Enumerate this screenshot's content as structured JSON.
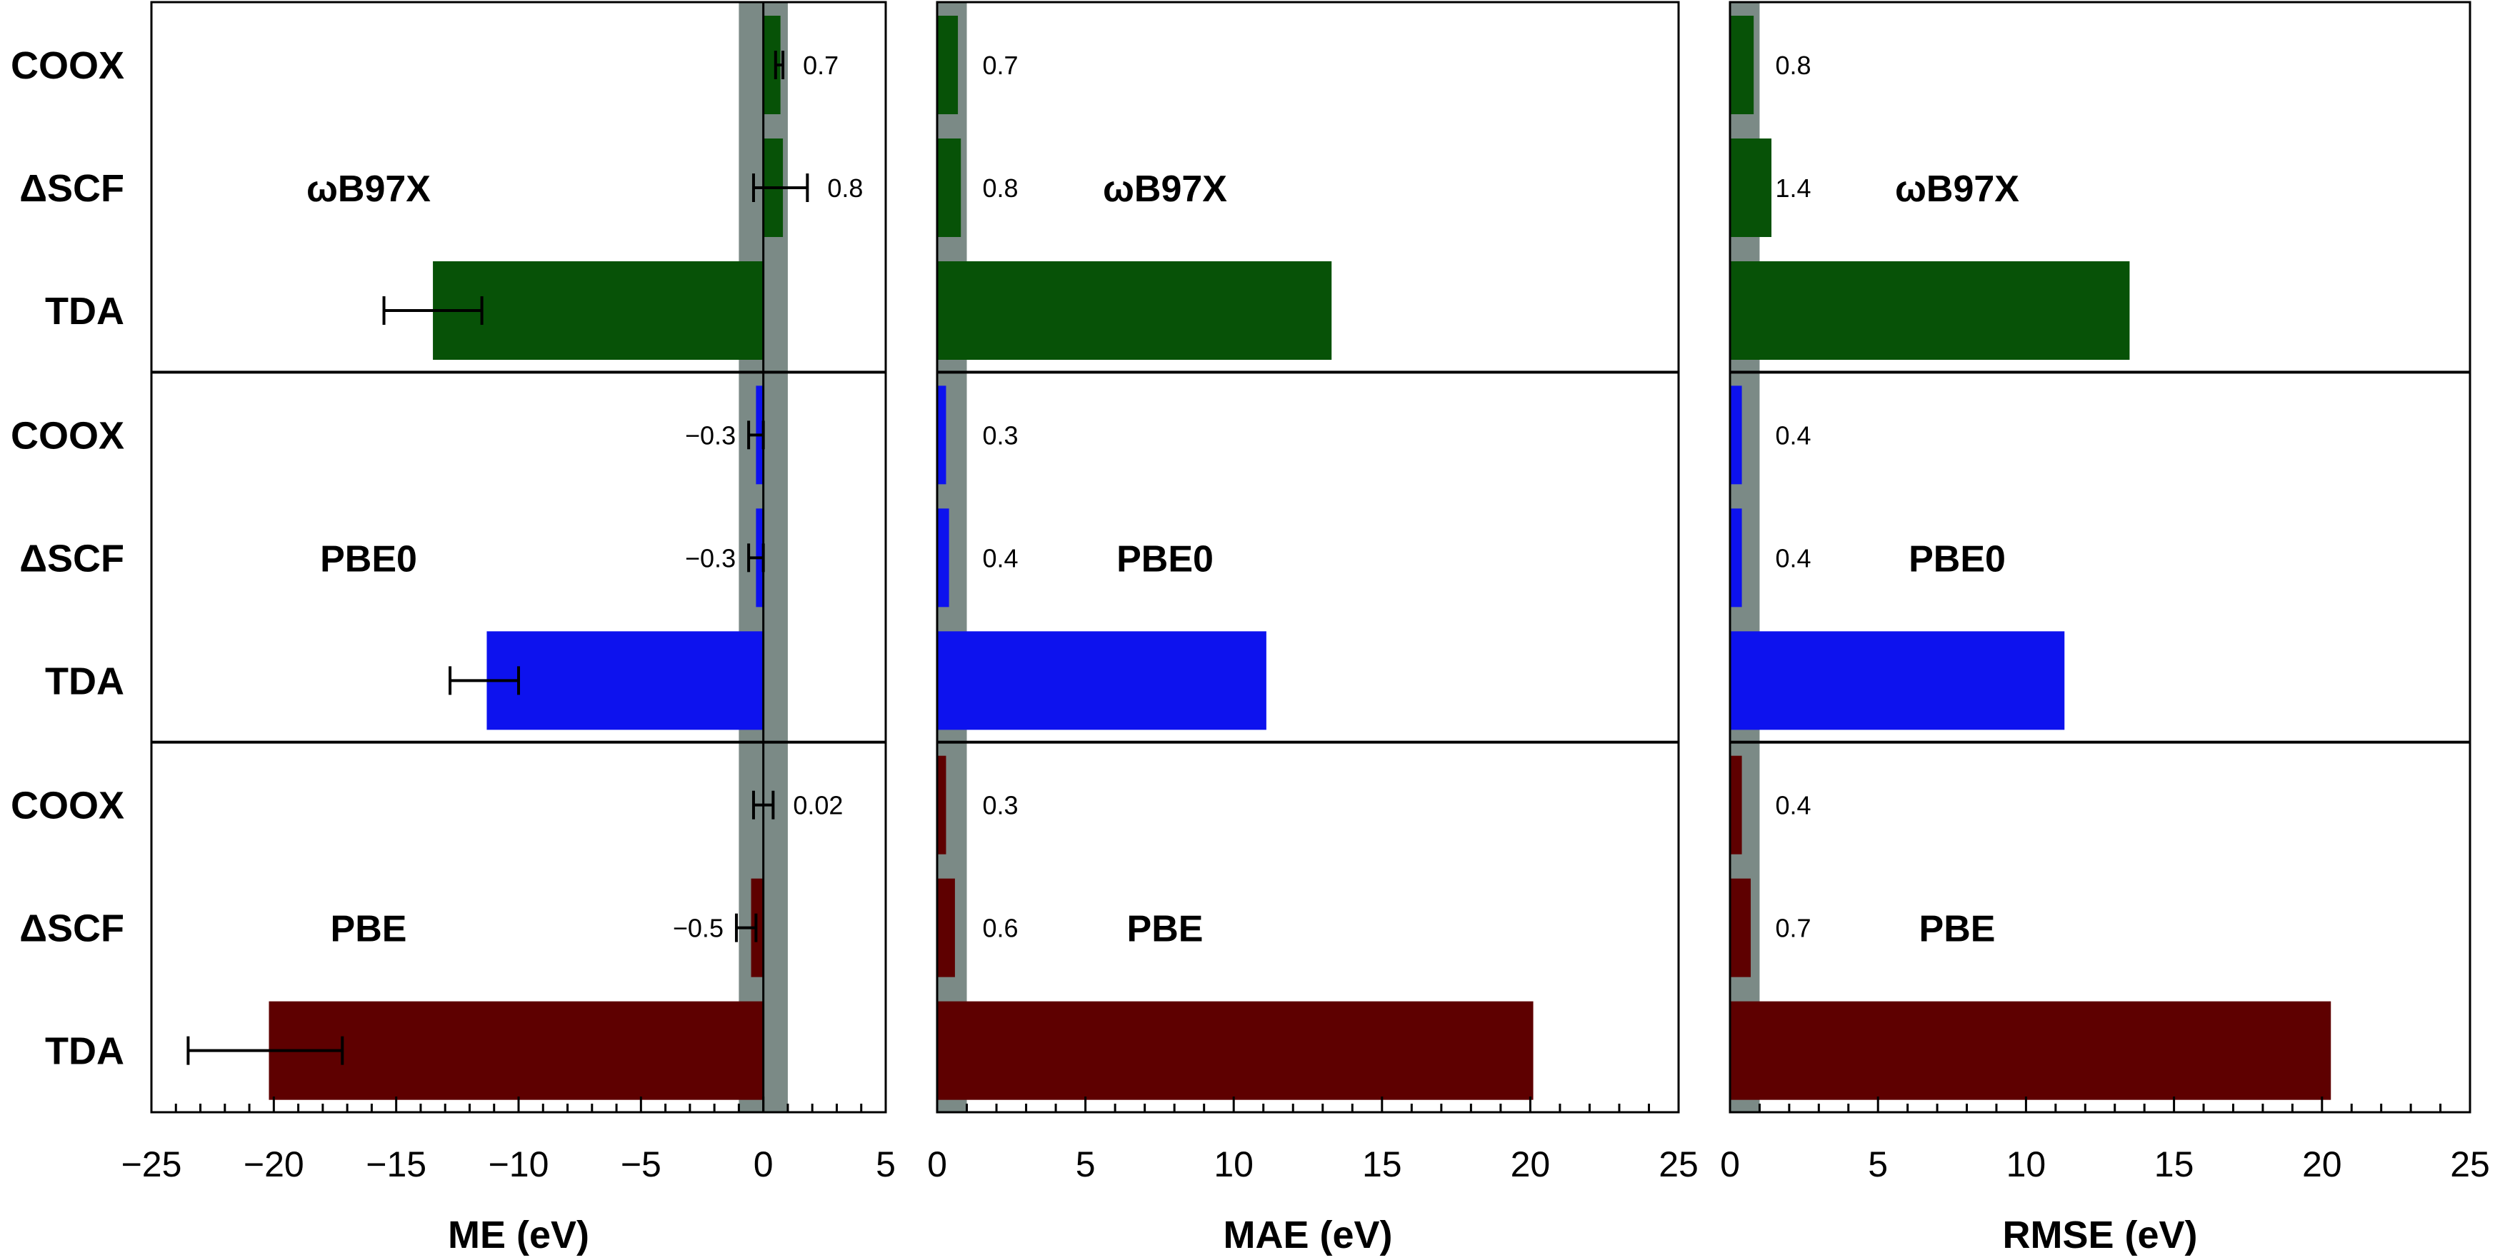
{
  "chart_data": [
    {
      "type": "bar",
      "orientation": "horizontal",
      "xlabel": "ME (eV)",
      "xlim": [
        -25,
        5
      ],
      "xticks": [
        -25,
        -20,
        -15,
        -10,
        -5,
        0,
        5
      ],
      "xtick_labels": [
        "−25",
        "−20",
        "−15",
        "−10",
        "−5",
        "0",
        "5"
      ],
      "reference_band": [
        -1,
        1
      ],
      "groups": [
        {
          "method": "ωB97X",
          "color": "#075207",
          "categories": [
            "COOX",
            "ΔSCF",
            "TDA"
          ],
          "values": [
            0.7,
            0.8,
            -13.5
          ],
          "error_low": [
            0.5,
            -0.4,
            -15.5
          ],
          "error_high": [
            0.8,
            1.8,
            -11.5
          ],
          "value_labels": [
            "0.7",
            "0.8",
            ""
          ]
        },
        {
          "method": "PBE0",
          "color": "#0d12ee",
          "categories": [
            "COOX",
            "ΔSCF",
            "TDA"
          ],
          "values": [
            -0.3,
            -0.3,
            -11.3
          ],
          "error_low": [
            -0.6,
            -0.6,
            -12.8
          ],
          "error_high": [
            0.0,
            0.0,
            -10.0
          ],
          "value_labels": [
            "−0.3",
            "−0.3",
            ""
          ]
        },
        {
          "method": "PBE",
          "color": "#5e0000",
          "categories": [
            "COOX",
            "ΔSCF",
            "TDA"
          ],
          "values": [
            0.02,
            -0.5,
            -20.2
          ],
          "error_low": [
            -0.4,
            -1.1,
            -23.5
          ],
          "error_high": [
            0.4,
            -0.3,
            -17.2
          ],
          "value_labels": [
            "0.02",
            "−0.5",
            ""
          ]
        }
      ]
    },
    {
      "type": "bar",
      "orientation": "horizontal",
      "xlabel": "MAE (eV)",
      "xlim": [
        0,
        25
      ],
      "xticks": [
        0,
        5,
        10,
        15,
        20,
        25
      ],
      "xtick_labels": [
        "0",
        "5",
        "10",
        "15",
        "20",
        "25"
      ],
      "reference_band": [
        0,
        1
      ],
      "groups": [
        {
          "method": "ωB97X",
          "color": "#075207",
          "categories": [
            "COOX",
            "ΔSCF",
            "TDA"
          ],
          "values": [
            0.7,
            0.8,
            13.3
          ],
          "value_labels": [
            "0.7",
            "0.8",
            ""
          ]
        },
        {
          "method": "PBE0",
          "color": "#0d12ee",
          "categories": [
            "COOX",
            "ΔSCF",
            "TDA"
          ],
          "values": [
            0.3,
            0.4,
            11.1
          ],
          "value_labels": [
            "0.3",
            "0.4",
            ""
          ]
        },
        {
          "method": "PBE",
          "color": "#5e0000",
          "categories": [
            "COOX",
            "ΔSCF",
            "TDA"
          ],
          "values": [
            0.3,
            0.6,
            20.1
          ],
          "value_labels": [
            "0.3",
            "0.6",
            ""
          ]
        }
      ]
    },
    {
      "type": "bar",
      "orientation": "horizontal",
      "xlabel": "RMSE (eV)",
      "xlim": [
        0,
        25
      ],
      "xticks": [
        0,
        5,
        10,
        15,
        20,
        25
      ],
      "xtick_labels": [
        "0",
        "5",
        "10",
        "15",
        "20",
        "25"
      ],
      "reference_band": [
        0,
        1
      ],
      "groups": [
        {
          "method": "ωB97X",
          "color": "#075207",
          "categories": [
            "COOX",
            "ΔSCF",
            "TDA"
          ],
          "values": [
            0.8,
            1.4,
            13.5
          ],
          "value_labels": [
            "0.8",
            "1.4",
            ""
          ]
        },
        {
          "method": "PBE0",
          "color": "#0d12ee",
          "categories": [
            "COOX",
            "ΔSCF",
            "TDA"
          ],
          "values": [
            0.4,
            0.4,
            11.3
          ],
          "value_labels": [
            "0.4",
            "0.4",
            ""
          ]
        },
        {
          "method": "PBE",
          "color": "#5e0000",
          "categories": [
            "COOX",
            "ΔSCF",
            "TDA"
          ],
          "values": [
            0.4,
            0.7,
            20.3
          ],
          "value_labels": [
            "0.4",
            "0.7",
            ""
          ]
        }
      ]
    }
  ],
  "colors": {
    "reference_band": "#7b8a86",
    "axis": "#000000",
    "background": "#ffffff"
  }
}
